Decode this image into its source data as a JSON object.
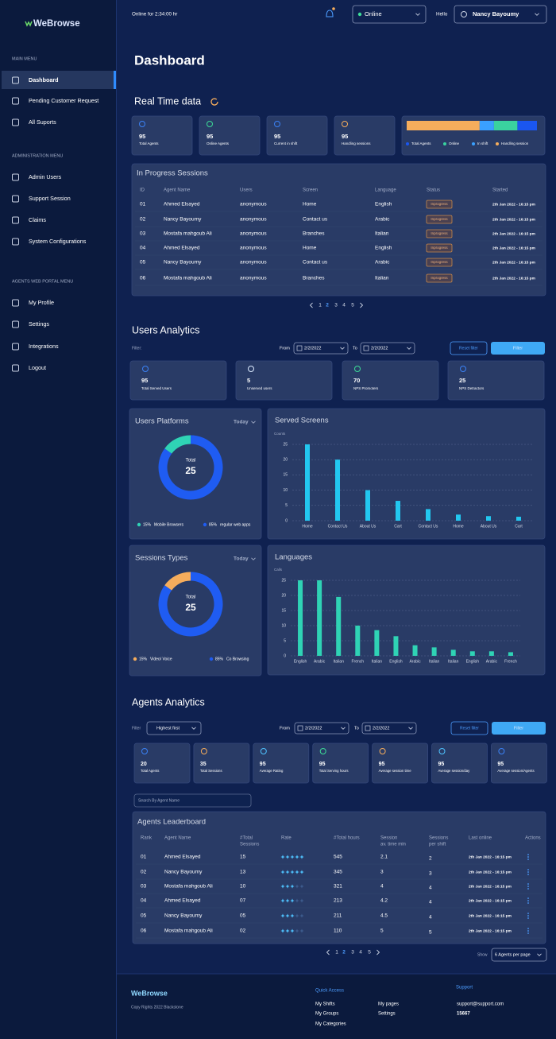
{
  "sidebar": {
    "logo": "WeBrowse",
    "sections": [
      {
        "title": "MAIN MENU",
        "items": [
          "Dashboard",
          "Pending Customer Request",
          "All Suports"
        ]
      },
      {
        "title": "ADMINISTRATION MENU",
        "items": [
          "Admin Users",
          "Support Session",
          "Claims",
          "System Configurations"
        ]
      },
      {
        "title": "AGENTS WEB PORTAL MENU",
        "items": [
          "My Profile",
          "Settings",
          "Integrations",
          "Logout"
        ]
      }
    ]
  },
  "topbar": {
    "online_time": "Online for 2:34:00 hr",
    "status": "Online",
    "greeting": "Hello",
    "user": "Nancy Bayoumy"
  },
  "page_title": "Dashboard",
  "real_time": {
    "title": "Real Time data",
    "stats": [
      {
        "value": 95,
        "label": "Total Agents"
      },
      {
        "value": 95,
        "label": "Online Agents"
      },
      {
        "value": 95,
        "label": "Current in shift"
      },
      {
        "value": 95,
        "label": "Handling sessions"
      }
    ],
    "bar": {
      "type": "stacked_bar",
      "series": [
        {
          "name": "Total Agents",
          "color": "#1a56f0",
          "value": 15
        },
        {
          "name": "Online",
          "color": "#3ad29f",
          "value": 18
        },
        {
          "name": "In shift",
          "color": "#3aa0ff",
          "value": 11
        },
        {
          "name": "Handling session",
          "color": "#f6ad5c",
          "value": 56
        }
      ]
    }
  },
  "in_progress": {
    "title": "In Progress Sessions",
    "columns": [
      "ID",
      "Agent Name",
      "Users",
      "Screen",
      "Language",
      "Status",
      "Started"
    ],
    "rows": [
      [
        "01",
        "Ahmed Elsayed",
        "anonymous",
        "Home",
        "English",
        "Inprogress",
        "2th Jan 2022 - 16:15 pm"
      ],
      [
        "02",
        "Nancy Bayoumy",
        "anonymous",
        "Contact us",
        "Arabic",
        "Inprogress",
        "2th Jan 2022 - 16:15 pm"
      ],
      [
        "03",
        "Mostafa mahgoub Ali",
        "anonymous",
        "Branches",
        "Italian",
        "Inprogress",
        "2th Jan 2022 - 16:15 pm"
      ],
      [
        "04",
        "Ahmed Elsayed",
        "anonymous",
        "Home",
        "English",
        "Inprogress",
        "2th Jan 2022 - 16:15 pm"
      ],
      [
        "05",
        "Nancy Bayoumy",
        "anonymous",
        "Contact us",
        "Arabic",
        "Inprogress",
        "2th Jan 2022 - 16:15 pm"
      ],
      [
        "06",
        "Mostafa mahgoub Ali",
        "anonymous",
        "Branches",
        "Italian",
        "Inprogress",
        "2th Jan 2022 - 16:15 pm"
      ]
    ],
    "pagination": {
      "pages": [
        1,
        2,
        3,
        4,
        5
      ],
      "current": 2
    }
  },
  "users_analytics": {
    "title": "Users Analytics",
    "filter_label": "Filter:",
    "from_label": "From",
    "from_date": "2/2/2022",
    "to_label": "To",
    "to_date": "2/2/2022",
    "reset": "Reset filter",
    "apply": "Filter",
    "stats": [
      {
        "value": 95,
        "label": "Total Served Users"
      },
      {
        "value": 5,
        "label": "Unserved users"
      },
      {
        "value": 70,
        "label": "NPS Promoters"
      },
      {
        "value": 25,
        "label": "NPS Detractors"
      }
    ],
    "platforms": {
      "type": "donut",
      "title": "Users Platforms",
      "period": "Today",
      "center_label": "Total",
      "center_value": 25,
      "slices": [
        {
          "name": "Mobile Browsers",
          "value": 15,
          "value_label": "15%",
          "color": "#2fd3b5"
        },
        {
          "name": "regular web apps",
          "value": 85,
          "value_label": "85%",
          "color": "#1f5cf2"
        }
      ]
    },
    "served_screens": {
      "type": "bar",
      "title": "Served Screens",
      "y_label": "Counts",
      "categories": [
        "Home",
        "Contact Us",
        "About Us",
        "Cart",
        "Contact Us",
        "Home",
        "About Us",
        "Cart"
      ],
      "values": [
        25,
        20,
        10,
        6.5,
        3.8,
        2,
        1.5,
        1.3
      ],
      "color": "#22c7f0",
      "ylim": [
        0,
        25
      ],
      "yticks": [
        0,
        5,
        10,
        15,
        20,
        25
      ],
      "grid": true
    },
    "sessions_types": {
      "type": "donut",
      "title": "Sessions Types",
      "period": "Today",
      "center_label": "Total",
      "center_value": 25,
      "slices": [
        {
          "name": "Video/ Voice",
          "value": 15,
          "value_label": "15%",
          "color": "#f6ad5c"
        },
        {
          "name": "Co Browsing",
          "value": 85,
          "value_label": "85%",
          "color": "#1f5cf2"
        }
      ]
    },
    "languages": {
      "type": "bar",
      "title": "Languages",
      "y_label": "Calls",
      "categories": [
        "English",
        "Arabic",
        "Italian",
        "French",
        "Italian",
        "English",
        "Arabic",
        "Italian",
        "Italian",
        "English",
        "Arabic",
        "French"
      ],
      "values": [
        25,
        25,
        19.5,
        10,
        8.5,
        6.5,
        3.5,
        2.8,
        2,
        1.5,
        1.5,
        1.2
      ],
      "color": "#2fd3b5",
      "ylim": [
        0,
        25
      ],
      "yticks": [
        0,
        5,
        10,
        15,
        20,
        25
      ],
      "grid": true
    }
  },
  "agents_analytics": {
    "title": "Agents Analytics",
    "filter_label": "Filter",
    "sort": "Highest first",
    "from_label": "From",
    "from_date": "2/2/2022",
    "to_label": "To",
    "to_date": "2/2/2022",
    "reset": "Reset filter",
    "apply": "Filter",
    "stats": [
      {
        "value": 20,
        "label": "Total Agents"
      },
      {
        "value": 35,
        "label": "Total Sessions"
      },
      {
        "value": 95,
        "label": "Average Rating"
      },
      {
        "value": 95,
        "label": "Total Serving hours"
      },
      {
        "value": 95,
        "label": "Average session time"
      },
      {
        "value": 95,
        "label": "Average session/day"
      },
      {
        "value": 95,
        "label": "Average session/Agents"
      }
    ],
    "search_placeholder": "Search By Agent Name",
    "leaderboard": {
      "title": "Agents Leaderboard",
      "columns": [
        [
          "Rank"
        ],
        [
          "Agent Name"
        ],
        [
          "#Total",
          "Sessions"
        ],
        [
          "Rate"
        ],
        [
          "#Total hours"
        ],
        [
          "Session",
          "av. time min"
        ],
        [
          "Sessions",
          "per shift"
        ],
        [
          "Last online"
        ],
        [
          "Actions"
        ]
      ],
      "rows": [
        {
          "rank": "01",
          "name": "Ahmed Elsayed",
          "sessions": "15",
          "rate": 5,
          "hours": 545,
          "avg_time": 2.1,
          "per_shift": 2,
          "last_online": "2th Jan 2022 - 16:15 pm"
        },
        {
          "rank": "02",
          "name": "Nancy Bayoumy",
          "sessions": "13",
          "rate": 5,
          "hours": 345,
          "avg_time": 3,
          "per_shift": 3,
          "last_online": "2th Jan 2022 - 16:15 pm"
        },
        {
          "rank": "03",
          "name": "Mostafa mahgoub Ali",
          "sessions": "10",
          "rate": 3,
          "hours": 321,
          "avg_time": 4,
          "per_shift": 4,
          "last_online": "2th Jan 2022 - 16:15 pm"
        },
        {
          "rank": "04",
          "name": "Ahmed Elsayed",
          "sessions": "07",
          "rate": 3,
          "hours": 213,
          "avg_time": 4.2,
          "per_shift": 4,
          "last_online": "2th Jan 2022 - 16:15 pm"
        },
        {
          "rank": "05",
          "name": "Nancy Bayoumy",
          "sessions": "05",
          "rate": 3,
          "hours": 211,
          "avg_time": 4.5,
          "per_shift": 4,
          "last_online": "2th Jan 2022 - 16:15 pm"
        },
        {
          "rank": "06",
          "name": "Mostafa mahgoub Ali",
          "sessions": "02",
          "rate": 3,
          "hours": 110,
          "avg_time": 5,
          "per_shift": 5,
          "last_online": "2th Jan 2022 - 16:15 pm"
        }
      ]
    },
    "pagination": {
      "pages": [
        1,
        2,
        3,
        4,
        5
      ],
      "current": 2
    },
    "show_label": "Show",
    "page_size": "6 Agents per page"
  },
  "footer": {
    "logo": "WeBrowse",
    "copyright": "Copy Rights 2022 Blackstone",
    "quick_access": {
      "title": "Quick Access",
      "links": [
        "My Shifts",
        "My Groups",
        "My Categories",
        "My pages",
        "Settings"
      ]
    },
    "support": {
      "title": "Support",
      "email": "support@support.com",
      "phone": "15667"
    }
  }
}
